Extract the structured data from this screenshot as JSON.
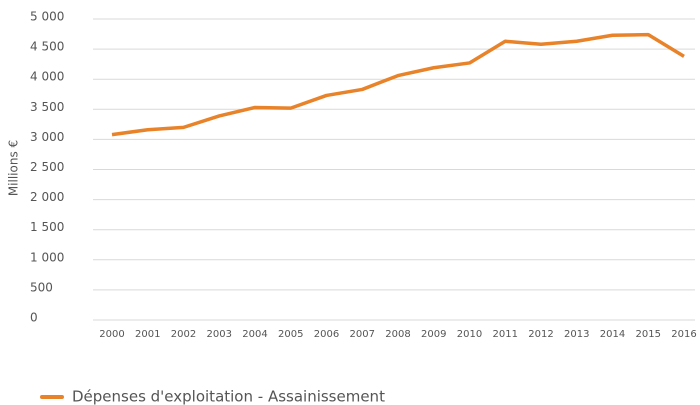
{
  "chart_data": {
    "type": "line",
    "y_label": "Millions €",
    "categories": [
      "2000",
      "2001",
      "2002",
      "2003",
      "2004",
      "2005",
      "2006",
      "2007",
      "2008",
      "2009",
      "2010",
      "2011",
      "2012",
      "2013",
      "2014",
      "2015",
      "2016"
    ],
    "series": [
      {
        "name": "Dépenses d'exploitation - Assainissement",
        "color": "#e8832a",
        "values": [
          3080,
          3160,
          3200,
          3390,
          3530,
          3520,
          3730,
          3830,
          4060,
          4190,
          4270,
          4630,
          4580,
          4630,
          4730,
          4740,
          4380
        ]
      }
    ],
    "ylim": [
      0,
      5000
    ],
    "yticks": [
      0,
      500,
      {
        "value": 1000,
        "label": "1 000"
      },
      {
        "value": 1500,
        "label": "1 500"
      },
      {
        "value": 2000,
        "label": "2 000"
      },
      {
        "value": 2500,
        "label": "2 500"
      },
      {
        "value": 3000,
        "label": "3 000"
      },
      {
        "value": 3500,
        "label": "3 500"
      },
      {
        "value": 4000,
        "label": "4 000"
      },
      {
        "value": 4500,
        "label": "4 500"
      },
      {
        "value": 5000,
        "label": "5 000"
      }
    ],
    "grid": true,
    "legend": "bottom"
  }
}
